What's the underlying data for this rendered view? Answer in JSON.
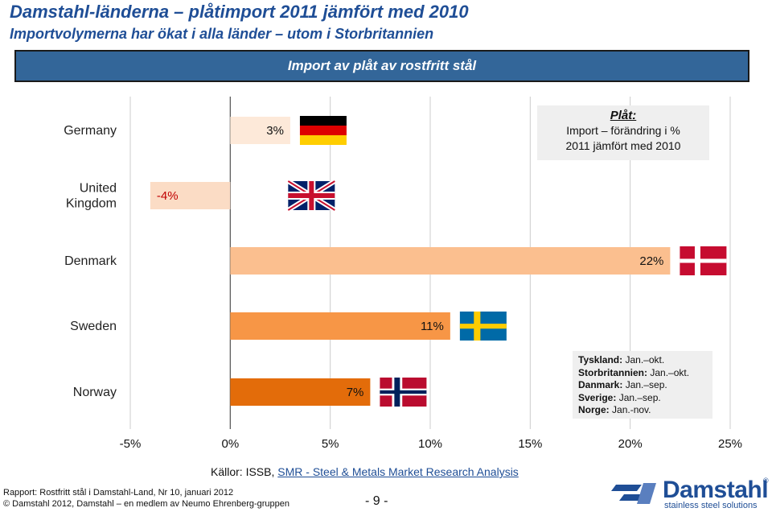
{
  "title": "Damstahl-länderna – plåtimport 2011 jämfört med 2010",
  "subtitle": "Importvolymerna har ökat i alla länder – utom i Storbritannien",
  "banner": "Import av plåt av rostfritt stål",
  "note_top": {
    "heading": "Plåt:",
    "line1": "Import – förändring i %",
    "line2": "2011 jämfört med 2010"
  },
  "note_periods": [
    {
      "country": "Tyskland:",
      "period": "Jan.–okt."
    },
    {
      "country": "Storbritannien:",
      "period": "Jan.–okt."
    },
    {
      "country": "Danmark:",
      "period": "Jan.–sep."
    },
    {
      "country": "Sverige:",
      "period": "Jan.–sep."
    },
    {
      "country": "Norge:",
      "period": "Jan.-nov."
    }
  ],
  "sources_prefix": "Källor: ISSB, ",
  "sources_link": "SMR - Steel & Metals Market Research Analysis",
  "footer": {
    "report": "Rapport: Rostfritt stål i Damstahl-Land, Nr 10, januari 2012",
    "copyright": "© Damstahl 2012, Damstahl – en medlem av Neumo Ehrenberg-gruppen",
    "page": "- 9 -"
  },
  "logo": {
    "name": "Damstahl",
    "registered": "®",
    "tagline": "stainless steel solutions",
    "mark_icon": "damstahl-logo-mark"
  },
  "chart_data": {
    "type": "bar",
    "orientation": "horizontal",
    "categories": [
      "Germany",
      "United Kingdom",
      "Denmark",
      "Sweden",
      "Norway"
    ],
    "category_lines": [
      [
        "Germany"
      ],
      [
        "United",
        "Kingdom"
      ],
      [
        "Denmark"
      ],
      [
        "Sweden"
      ],
      [
        "Norway"
      ]
    ],
    "values": [
      3,
      -4,
      22,
      11,
      7
    ],
    "value_labels": [
      "3%",
      "-4%",
      "22%",
      "11%",
      "7%"
    ],
    "bar_colors": [
      "#fde9d9",
      "#fbdcc5",
      "#fbbf8f",
      "#f79646",
      "#e36c0a"
    ],
    "label_colors": [
      "#111111",
      "#c00000",
      "#111111",
      "#111111",
      "#111111"
    ],
    "flag_icons": [
      "germany-flag-icon",
      "uk-flag-icon",
      "denmark-flag-icon",
      "sweden-flag-icon",
      "norway-flag-icon"
    ],
    "xlim": [
      -5,
      25
    ],
    "xticks": [
      -5,
      0,
      5,
      10,
      15,
      20,
      25
    ],
    "xtick_labels": [
      "-5%",
      "0%",
      "5%",
      "10%",
      "15%",
      "20%",
      "25%"
    ],
    "grid": "vertical",
    "zero_line": true
  }
}
